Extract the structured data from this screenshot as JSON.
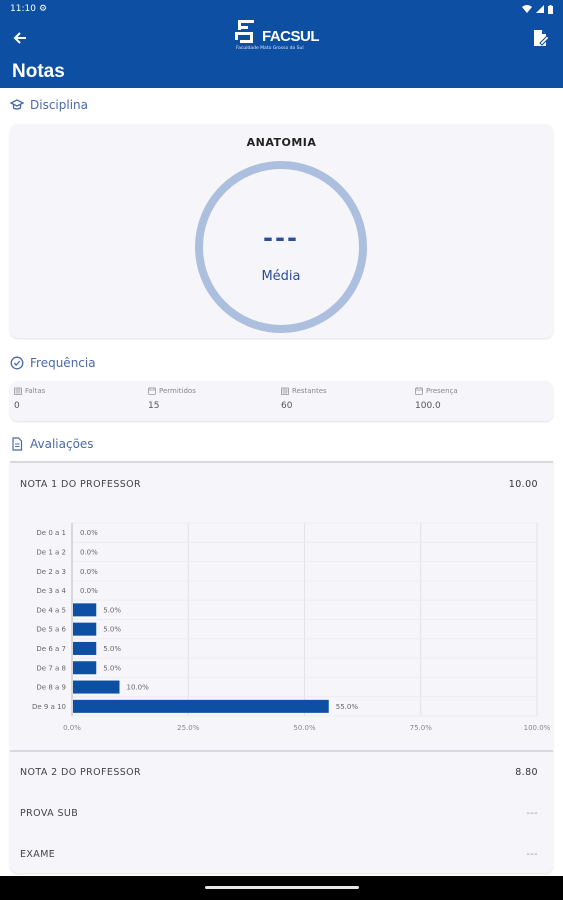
{
  "status_bar": {
    "time": "11:10"
  },
  "header": {
    "logo_text": "FACSUL",
    "logo_subtitle": "Faculdade Mato Grosso do Sul",
    "title": "Notas"
  },
  "discipline": {
    "section_label": "Disciplina",
    "name": "ANATOMIA",
    "average_value": "---",
    "average_label": "Média"
  },
  "frequency": {
    "section_label": "Frequência",
    "items": [
      {
        "label": "Faltas",
        "value": "0",
        "icon": "calendar-grid-icon"
      },
      {
        "label": "Permitidos",
        "value": "15",
        "icon": "calendar-icon"
      },
      {
        "label": "Restantes",
        "value": "60",
        "icon": "calendar-grid-icon"
      },
      {
        "label": "Presença",
        "value": "100.0",
        "icon": "calendar-icon"
      }
    ]
  },
  "evaluations": {
    "section_label": "Avaliações",
    "items": [
      {
        "label": "NOTA 1 DO PROFESSOR",
        "value": "10.00"
      },
      {
        "label": "NOTA 2 DO PROFESSOR",
        "value": "8.80"
      },
      {
        "label": "PROVA SUB",
        "value": "---"
      },
      {
        "label": "EXAME",
        "value": "---"
      }
    ]
  },
  "colors": {
    "primary": "#0d4fa3",
    "bar": "#0d4fa3",
    "ring": "#adbfdf",
    "accent_text": "#4a6aa8"
  },
  "chart_data": {
    "type": "bar",
    "orientation": "horizontal",
    "categories": [
      "De 0 a 1",
      "De 1 a 2",
      "De 2 a 3",
      "De 3 a 4",
      "De 4 a 5",
      "De 5 a 6",
      "De 6 a 7",
      "De 7 a 8",
      "De 8 a 9",
      "De 9 a 10"
    ],
    "values": [
      0.0,
      0.0,
      0.0,
      0.0,
      5.0,
      5.0,
      5.0,
      5.0,
      10.0,
      55.0
    ],
    "value_labels": [
      "0.0%",
      "0.0%",
      "0.0%",
      "0.0%",
      "5.0%",
      "5.0%",
      "5.0%",
      "5.0%",
      "10.0%",
      "55.0%"
    ],
    "x_ticks": [
      "0.0%",
      "25.0%",
      "50.0%",
      "75.0%",
      "100.0%"
    ],
    "xlim": [
      0,
      100
    ],
    "grid": true
  }
}
